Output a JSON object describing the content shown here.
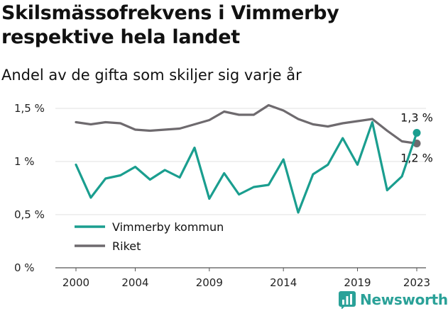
{
  "title": "Skilsmässofrekvens i Vimmerby respektive hela landet",
  "subtitle": "Andel av de gifta som skiljer sig varje år",
  "brand": {
    "name": "Newsworthy",
    "icon": "newsworthy-logo-icon",
    "color": "#2aa198"
  },
  "chart_data": {
    "type": "line",
    "title": "Skilsmässofrekvens i Vimmerby respektive hela landet",
    "subtitle": "Andel av de gifta som skiljer sig varje år",
    "xlabel": "",
    "ylabel": "",
    "x": [
      2000,
      2001,
      2002,
      2003,
      2004,
      2005,
      2006,
      2007,
      2008,
      2009,
      2010,
      2011,
      2012,
      2013,
      2014,
      2015,
      2016,
      2017,
      2018,
      2019,
      2020,
      2021,
      2022,
      2023
    ],
    "series": [
      {
        "name": "Vimmerby kommun",
        "color": "#1a9e8f",
        "values": [
          0.97,
          0.66,
          0.84,
          0.87,
          0.95,
          0.83,
          0.92,
          0.85,
          1.13,
          0.65,
          0.89,
          0.69,
          0.76,
          0.78,
          1.02,
          0.52,
          0.88,
          0.97,
          1.22,
          0.97,
          1.37,
          0.73,
          0.86,
          1.27
        ]
      },
      {
        "name": "Riket",
        "color": "#6e6a6e",
        "values": [
          1.37,
          1.35,
          1.37,
          1.36,
          1.3,
          1.29,
          1.3,
          1.31,
          1.35,
          1.39,
          1.47,
          1.44,
          1.44,
          1.53,
          1.48,
          1.4,
          1.35,
          1.33,
          1.36,
          1.38,
          1.4,
          1.29,
          1.19,
          1.17
        ]
      }
    ],
    "end_labels": [
      "1,3 %",
      "1,2 %"
    ],
    "yticks": [
      0,
      0.5,
      1,
      1.5
    ],
    "ytick_labels": [
      "0 %",
      "0,5 %",
      "1 %",
      "1,5 %"
    ],
    "xticks": [
      2000,
      2004,
      2009,
      2014,
      2019,
      2023
    ],
    "xtick_labels": [
      "2000",
      "2004",
      "2009",
      "2014",
      "2019",
      "2023"
    ],
    "ylim": [
      0,
      1.6
    ],
    "xlim": [
      2000,
      2023
    ],
    "grid": "horizontal",
    "legend": "bottom-left"
  }
}
